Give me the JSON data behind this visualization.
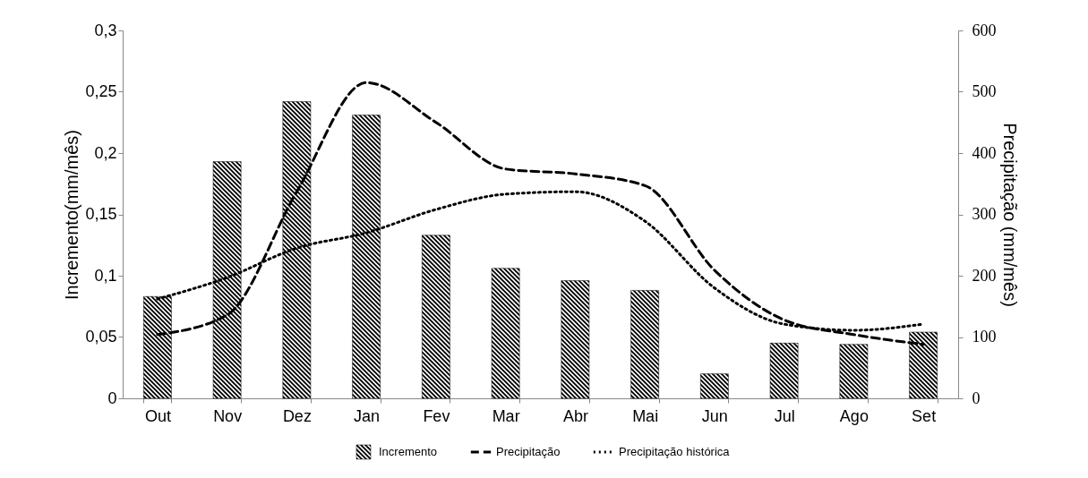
{
  "chart_data": {
    "type": "bar",
    "categories": [
      "Out",
      "Nov",
      "Dez",
      "Jan",
      "Fev",
      "Mar",
      "Abr",
      "Mai",
      "Jun",
      "Jul",
      "Ago",
      "Set"
    ],
    "ylabel": "Incremento(mm/mês)",
    "y2label": "Precipitação (mm/mês)",
    "ylim": [
      0,
      0.3
    ],
    "yticks": [
      0,
      {
        "value": 0.05,
        "label": "0,05"
      },
      {
        "value": 0.1,
        "label": "0,1"
      },
      {
        "value": 0.15,
        "label": "0,15"
      },
      {
        "value": 0.2,
        "label": "0,2"
      },
      {
        "value": 0.25,
        "label": "0,25"
      },
      {
        "value": 0.3,
        "label": "0,3"
      }
    ],
    "y2lim": [
      0,
      600
    ],
    "y2ticks": [
      0,
      100,
      200,
      300,
      400,
      500,
      600
    ],
    "grid": false,
    "legend": "bottom",
    "series": [
      {
        "name": "Incremento",
        "color": "#000000",
        "values": [
          0.083,
          0.193,
          0.242,
          0.231,
          0.133,
          0.106,
          0.096,
          0.088,
          0.02,
          0.045,
          0.044,
          0.054
        ]
      },
      {
        "name": "Precipitação",
        "type": "line",
        "axis": "y2",
        "line_style": "dashed",
        "color": "#000000",
        "values": [
          104,
          136,
          337,
          515,
          450,
          374,
          366,
          347,
          209,
          128,
          104,
          88
        ]
      },
      {
        "name": "Precipitação histórica",
        "type": "line",
        "axis": "y2",
        "line_style": "dotted",
        "color": "#000000",
        "values": [
          162,
          197,
          245,
          270,
          308,
          333,
          337,
          289,
          180,
          121,
          111,
          121
        ]
      }
    ]
  }
}
